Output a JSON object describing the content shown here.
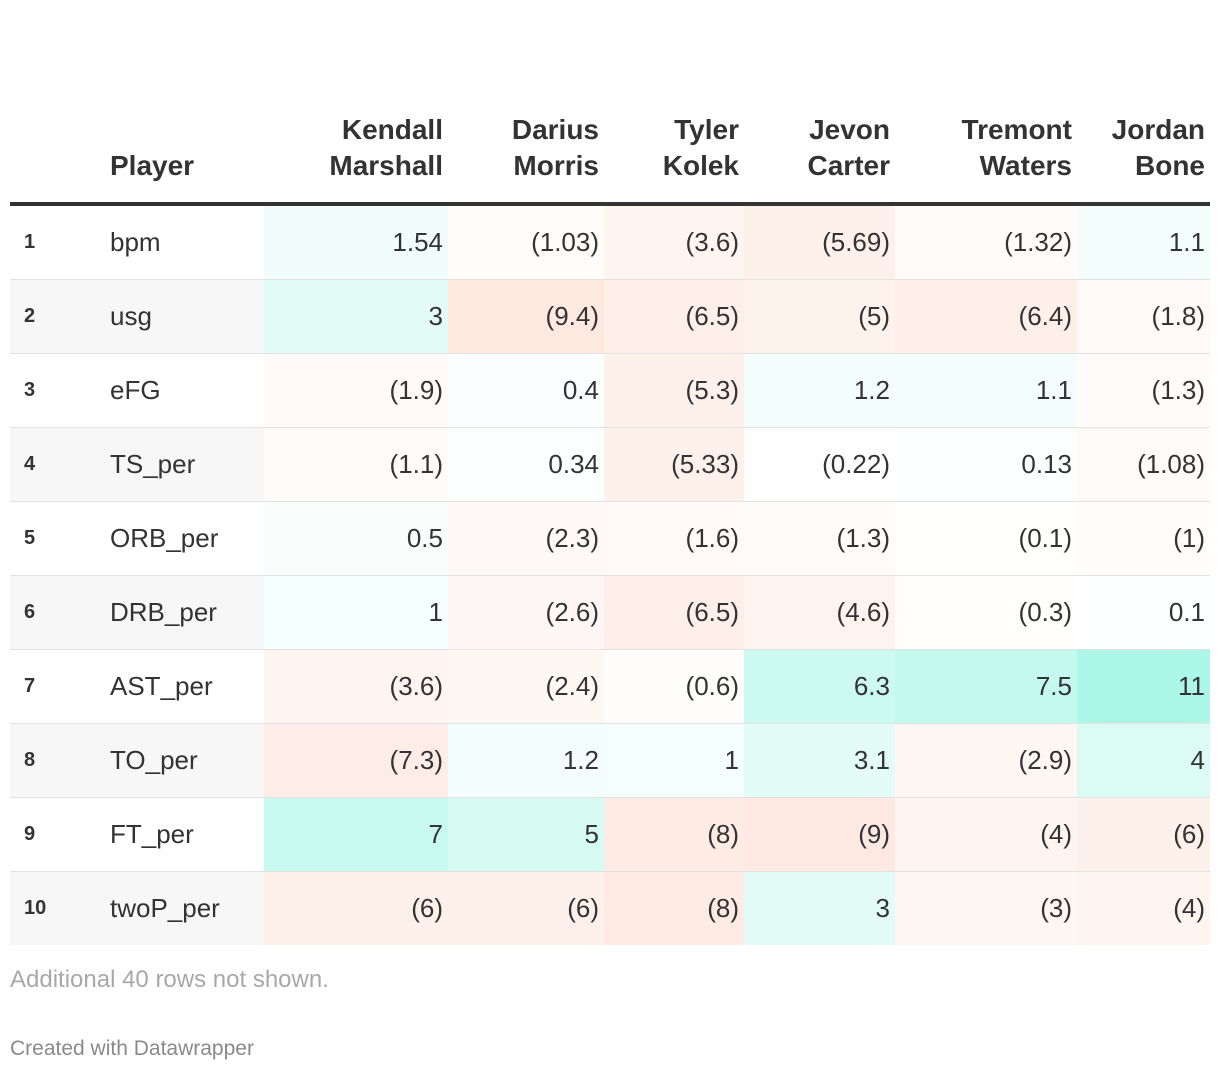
{
  "chart_data": {
    "type": "table",
    "row_header": "Player",
    "columns": [
      "Kendall Marshall",
      "Darius Morris",
      "Tyler Kolek",
      "Jevon Carter",
      "Tremont Waters",
      "Jordan Bone"
    ],
    "rows": [
      {
        "rank": "1",
        "label": "bpm",
        "values": [
          1.54,
          -1.03,
          -3.6,
          -5.69,
          -1.32,
          1.1
        ],
        "display": [
          "1.54",
          "(1.03)",
          "(3.6)",
          "(5.69)",
          "(1.32)",
          "1.1"
        ]
      },
      {
        "rank": "2",
        "label": "usg",
        "values": [
          3,
          -9.4,
          -6.5,
          -5,
          -6.4,
          -1.8
        ],
        "display": [
          "3",
          "(9.4)",
          "(6.5)",
          "(5)",
          "(6.4)",
          "(1.8)"
        ]
      },
      {
        "rank": "3",
        "label": "eFG",
        "values": [
          -1.9,
          0.4,
          -5.3,
          1.2,
          1.1,
          -1.3
        ],
        "display": [
          "(1.9)",
          "0.4",
          "(5.3)",
          "1.2",
          "1.1",
          "(1.3)"
        ]
      },
      {
        "rank": "4",
        "label": "TS_per",
        "values": [
          -1.1,
          0.34,
          -5.33,
          -0.22,
          0.13,
          -1.08
        ],
        "display": [
          "(1.1)",
          "0.34",
          "(5.33)",
          "(0.22)",
          "0.13",
          "(1.08)"
        ]
      },
      {
        "rank": "5",
        "label": "ORB_per",
        "values": [
          0.5,
          -2.3,
          -1.6,
          -1.3,
          -0.1,
          -1
        ],
        "display": [
          "0.5",
          "(2.3)",
          "(1.6)",
          "(1.3)",
          "(0.1)",
          "(1)"
        ]
      },
      {
        "rank": "6",
        "label": "DRB_per",
        "values": [
          1,
          -2.6,
          -6.5,
          -4.6,
          -0.3,
          0.1
        ],
        "display": [
          "1",
          "(2.6)",
          "(6.5)",
          "(4.6)",
          "(0.3)",
          "0.1"
        ]
      },
      {
        "rank": "7",
        "label": "AST_per",
        "values": [
          -3.6,
          -2.4,
          -0.6,
          6.3,
          7.5,
          11
        ],
        "display": [
          "(3.6)",
          "(2.4)",
          "(0.6)",
          "6.3",
          "7.5",
          "11"
        ]
      },
      {
        "rank": "8",
        "label": "TO_per",
        "values": [
          -7.3,
          1.2,
          1,
          3.1,
          -2.9,
          4
        ],
        "display": [
          "(7.3)",
          "1.2",
          "1",
          "3.1",
          "(2.9)",
          "4"
        ]
      },
      {
        "rank": "9",
        "label": "FT_per",
        "values": [
          7,
          5,
          -8,
          -9,
          -4,
          -6
        ],
        "display": [
          "7",
          "5",
          "(8)",
          "(9)",
          "(4)",
          "(6)"
        ]
      },
      {
        "rank": "10",
        "label": "twoP_per",
        "values": [
          -6,
          -6,
          -8,
          3,
          -3,
          -4
        ],
        "display": [
          "(6)",
          "(6)",
          "(8)",
          "3",
          "(3)",
          "(4)"
        ]
      }
    ],
    "colors": {
      "positive": "#9ff5e4",
      "negative": "#fde6dd"
    }
  },
  "notes": "Additional 40 rows not shown.",
  "credit": "Created with Datawrapper"
}
